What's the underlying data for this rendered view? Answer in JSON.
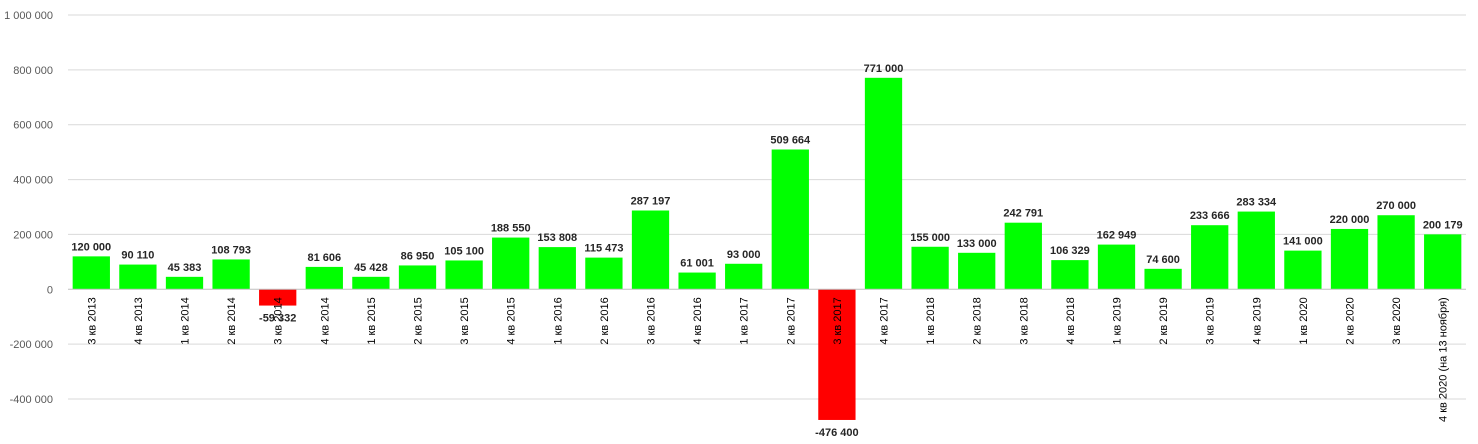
{
  "chart_data": {
    "type": "bar",
    "title": "",
    "xlabel": "",
    "ylabel": "",
    "ylim": [
      -400000,
      1000000
    ],
    "yticks": [
      -400000,
      -200000,
      0,
      200000,
      400000,
      600000,
      800000,
      1000000
    ],
    "ytick_labels": [
      "-400 000",
      "-200 000",
      "0",
      "200 000",
      "400 000",
      "600 000",
      "800 000",
      "1 000 000"
    ],
    "grid": true,
    "colors": {
      "positive": "#00ff00",
      "negative": "#ff0000"
    },
    "categories": [
      "3 кв 2013",
      "4 кв 2013",
      "1 кв 2014",
      "2 кв 2014",
      "3 кв 2014",
      "4 кв 2014",
      "1 кв 2015",
      "2 кв 2015",
      "3 кв 2015",
      "4 кв 2015",
      "1 кв 2016",
      "2 кв 2016",
      "3 кв 2016",
      "4 кв 2016",
      "1 кв 2017",
      "2 кв 2017",
      "3 кв 2017",
      "4 кв 2017",
      "1 кв 2018",
      "2 кв 2018",
      "3 кв 2018",
      "4 кв 2018",
      "1 кв 2019",
      "2 кв 2019",
      "3 кв 2019",
      "4 кв 2019",
      "1 кв 2020",
      "2 кв 2020",
      "3 кв 2020",
      "4 кв 2020 (на 13 ноября)"
    ],
    "values": [
      120000,
      90110,
      45383,
      108793,
      -59332,
      81606,
      45428,
      86950,
      105100,
      188550,
      153808,
      115473,
      287197,
      61001,
      93000,
      509664,
      -476400,
      771000,
      155000,
      133000,
      242791,
      106329,
      162949,
      74600,
      233666,
      283334,
      141000,
      220000,
      270000,
      200179
    ],
    "data_labels": [
      "120 000",
      "90 110",
      "45 383",
      "108 793",
      "-59 332",
      "81 606",
      "45 428",
      "86 950",
      "105 100",
      "188 550",
      "153 808",
      "115 473",
      "287 197",
      "61 001",
      "93 000",
      "509 664",
      "-476 400",
      "771 000",
      "155 000",
      "133 000",
      "242 791",
      "106 329",
      "162 949",
      "74 600",
      "233 666",
      "283 334",
      "141 000",
      "220 000",
      "270 000",
      "200 179"
    ]
  }
}
